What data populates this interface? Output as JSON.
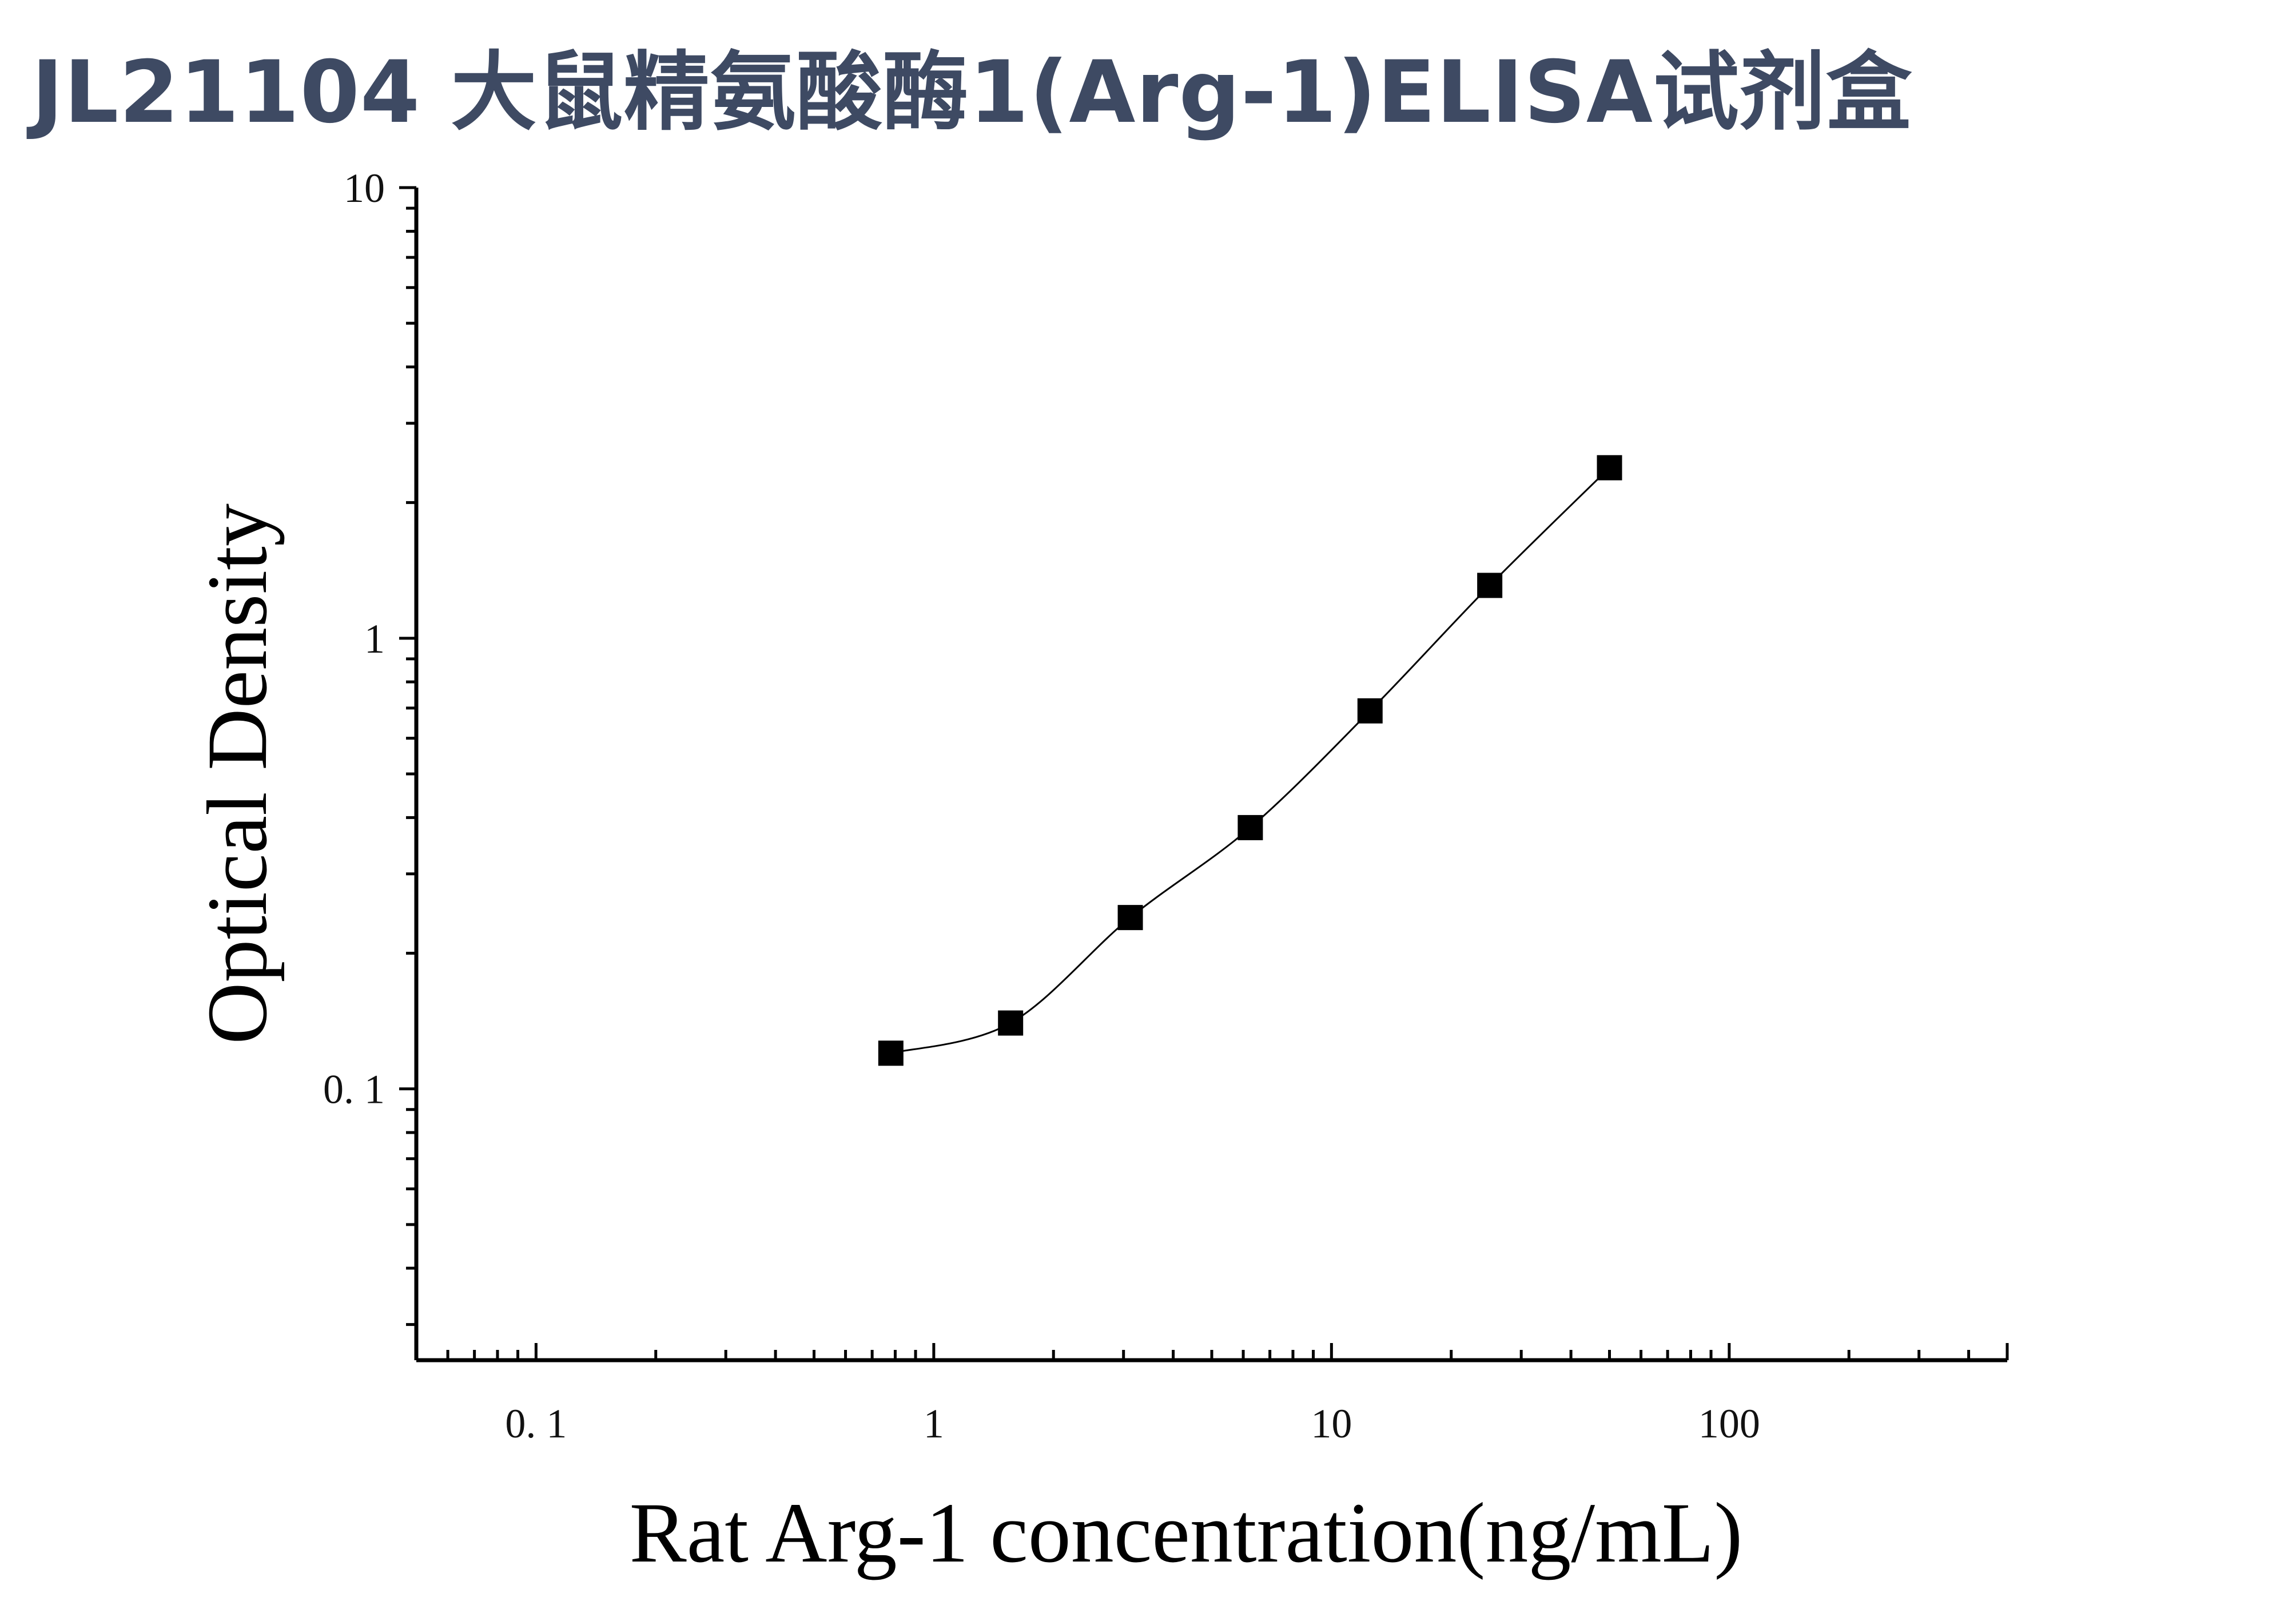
{
  "title": "JL21104 大鼠精氨酸酶1(Arg-1)ELISA试剂盒",
  "chart_data": {
    "type": "scatter",
    "title": "JL21104 大鼠精氨酸酶1(Arg-1)ELISA试剂盒",
    "xlabel": "Rat Arg-1 concentration(ng/mL)",
    "ylabel": "Optical Density",
    "xscale": "log",
    "yscale": "log",
    "xlim": [
      0.05,
      500
    ],
    "ylim": [
      0.025,
      10
    ],
    "xticks": [
      {
        "value": 0.1,
        "label": "0. 1"
      },
      {
        "value": 1,
        "label": "1"
      },
      {
        "value": 10,
        "label": "10"
      },
      {
        "value": 100,
        "label": "100"
      }
    ],
    "yticks": [
      {
        "value": 0.1,
        "label": "0. 1"
      },
      {
        "value": 1,
        "label": "1"
      },
      {
        "value": 10,
        "label": "10"
      }
    ],
    "grid": false,
    "series": [
      {
        "marker": "square",
        "color": "#000000",
        "x": [
          0.78,
          1.56,
          3.12,
          6.25,
          12.5,
          25,
          50
        ],
        "y": [
          0.12,
          0.14,
          0.24,
          0.38,
          0.69,
          1.31,
          2.39
        ],
        "fit_line": true
      }
    ]
  }
}
